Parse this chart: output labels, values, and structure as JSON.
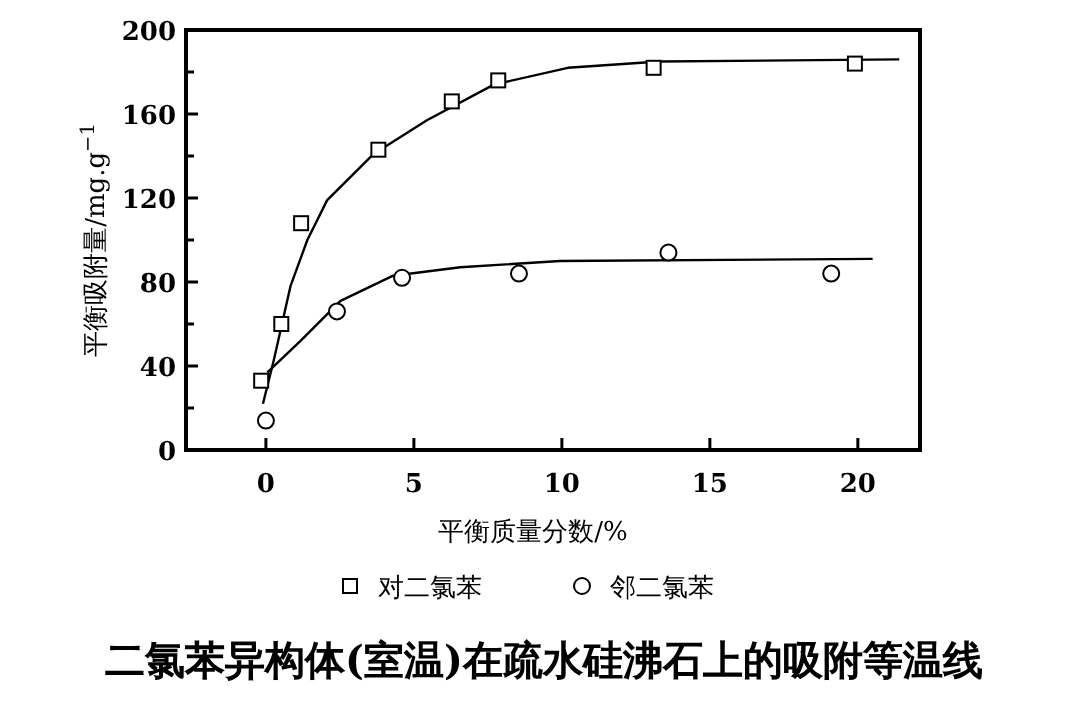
{
  "chart_data": {
    "type": "scatter",
    "title": "二氯苯异构体(室温)在疏水硅沸石上的吸附等温线",
    "xlabel": "平衡质量分数/%",
    "ylabel": "平衡吸附量/mg.g$^{−1}$",
    "xlim": [
      -2.7,
      22.1
    ],
    "ylim": [
      0,
      200
    ],
    "xticks": [
      0,
      5,
      10,
      15,
      20
    ],
    "yticks": [
      0,
      {
        "value": 20,
        "label": null
      },
      40,
      {
        "value": 60,
        "label": null
      },
      80,
      {
        "value": 100,
        "label": null
      },
      120,
      {
        "value": 140,
        "label": null
      },
      160,
      {
        "value": 180,
        "label": null
      },
      200
    ],
    "legend": "bottom",
    "grid": false,
    "line_style": "solid",
    "series": [
      {
        "name": "对二氯苯",
        "type": "scatter",
        "marker": "square",
        "color": "#000000",
        "x": [
          -0.16,
          0.52,
          1.19,
          3.8,
          6.28,
          7.85,
          13.1,
          19.9
        ],
        "values": [
          33,
          60,
          108,
          143,
          166,
          176,
          182,
          184
        ]
      },
      {
        "name": "邻二氯苯",
        "type": "scatter",
        "marker": "circle",
        "color": "#000000",
        "x": [
          0,
          2.4,
          4.6,
          8.55,
          13.6,
          19.1
        ],
        "values": [
          14,
          66,
          82,
          84,
          94,
          84
        ]
      },
      {
        "type": "line",
        "marker": "none",
        "color": "#000000",
        "x": [
          -0.1,
          0.27,
          0.83,
          1.4,
          2.07,
          3.64,
          5.44,
          7.7,
          10.2,
          13.3,
          21.4
        ],
        "values": [
          22,
          43,
          78,
          100,
          119,
          141,
          157,
          174,
          182,
          185,
          186
        ]
      },
      {
        "type": "line",
        "marker": "none",
        "color": "#000000",
        "x": [
          0.05,
          1.17,
          2.52,
          4.3,
          6.57,
          9.94,
          20.5
        ],
        "values": [
          37,
          52,
          71,
          83,
          87,
          90,
          91
        ]
      }
    ]
  }
}
